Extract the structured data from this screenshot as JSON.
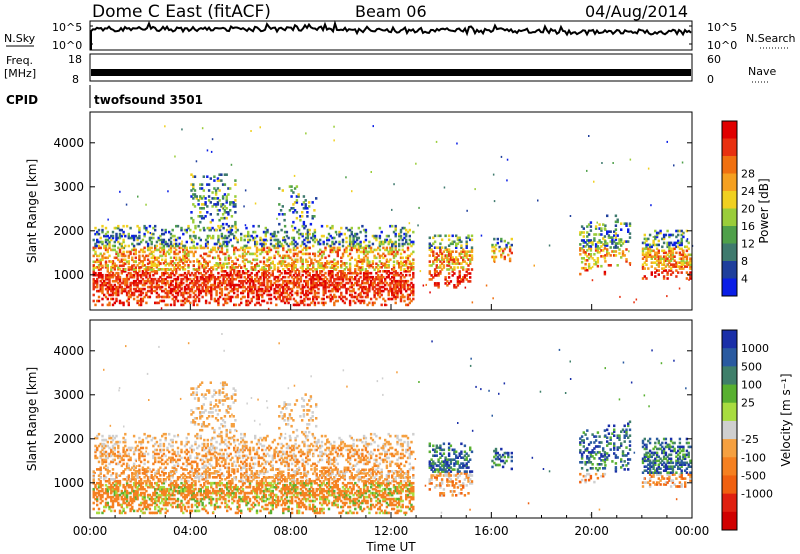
{
  "header": {
    "station": "Dome C East (fitACF)",
    "beam": "Beam 06",
    "date": "04/Aug/2014"
  },
  "colors": {
    "power_scale": [
      "#0a1ee6",
      "#1f3f9c",
      "#3f7a6e",
      "#4fa04a",
      "#9acd3a",
      "#f0d020",
      "#f5a020",
      "#f07010",
      "#e83010",
      "#e00000"
    ],
    "velocity_scale": [
      "#1a2fa8",
      "#2a5aa0",
      "#3f7f6a",
      "#58b030",
      "#a8dc40",
      "#cfcfcf",
      "#f5a040",
      "#f58020",
      "#f06010",
      "#e02010",
      "#d00000"
    ]
  },
  "chart_data": [
    {
      "type": "line",
      "panel": "noise",
      "left_title": "N.Sky",
      "left_ticks": [
        "10^5",
        "10^0"
      ],
      "right_title": "N.Search",
      "right_ticks": [
        "10^5",
        "10^0"
      ],
      "x": [
        0,
        2,
        4,
        6,
        8,
        10,
        12,
        14,
        16,
        18,
        20,
        22,
        24
      ],
      "series": [
        {
          "values": [
            2000,
            3000,
            4000,
            3500,
            4500,
            5000,
            3000,
            2000,
            2500,
            2000,
            3000,
            2500,
            2000
          ]
        }
      ]
    },
    {
      "type": "line",
      "panel": "frequency",
      "left_title": "Freq.",
      "left_unit": "[MHz]",
      "left_ticks": [
        "18",
        "8"
      ],
      "right_title": "Nave",
      "right_ticks": [
        "60",
        "0"
      ],
      "x": [
        0,
        24
      ],
      "series": [
        {
          "values": [
            10,
            10
          ]
        }
      ]
    },
    {
      "type": "text",
      "panel": "cpid",
      "label": "CPID",
      "value": "twofsound 3501"
    },
    {
      "type": "heatmap",
      "panel": "power",
      "ylabel": "Slant Range [km]",
      "yticks": [
        "1000",
        "2000",
        "3000",
        "4000"
      ],
      "ylim": [
        200,
        4700
      ],
      "xlim": [
        0,
        24
      ],
      "colorbar_label": "Power [dB]",
      "colorbar_ticks": [
        "4",
        "8",
        "12",
        "16",
        "20",
        "24",
        "28"
      ],
      "clim": [
        0,
        30
      ]
    },
    {
      "type": "heatmap",
      "panel": "velocity",
      "ylabel": "Slant Range [km]",
      "yticks": [
        "1000",
        "2000",
        "3000",
        "4000"
      ],
      "ylim": [
        200,
        4700
      ],
      "xlim": [
        0,
        24
      ],
      "xticks": [
        "00:00",
        "04:00",
        "08:00",
        "12:00",
        "16:00",
        "20:00",
        "00:00"
      ],
      "xlabel": "Time UT",
      "colorbar_label": "Velocity [m s^-1]",
      "colorbar_ticks": [
        "1000",
        "500",
        "100",
        "25",
        "-25",
        "-100",
        "-500",
        "-1000"
      ]
    }
  ]
}
